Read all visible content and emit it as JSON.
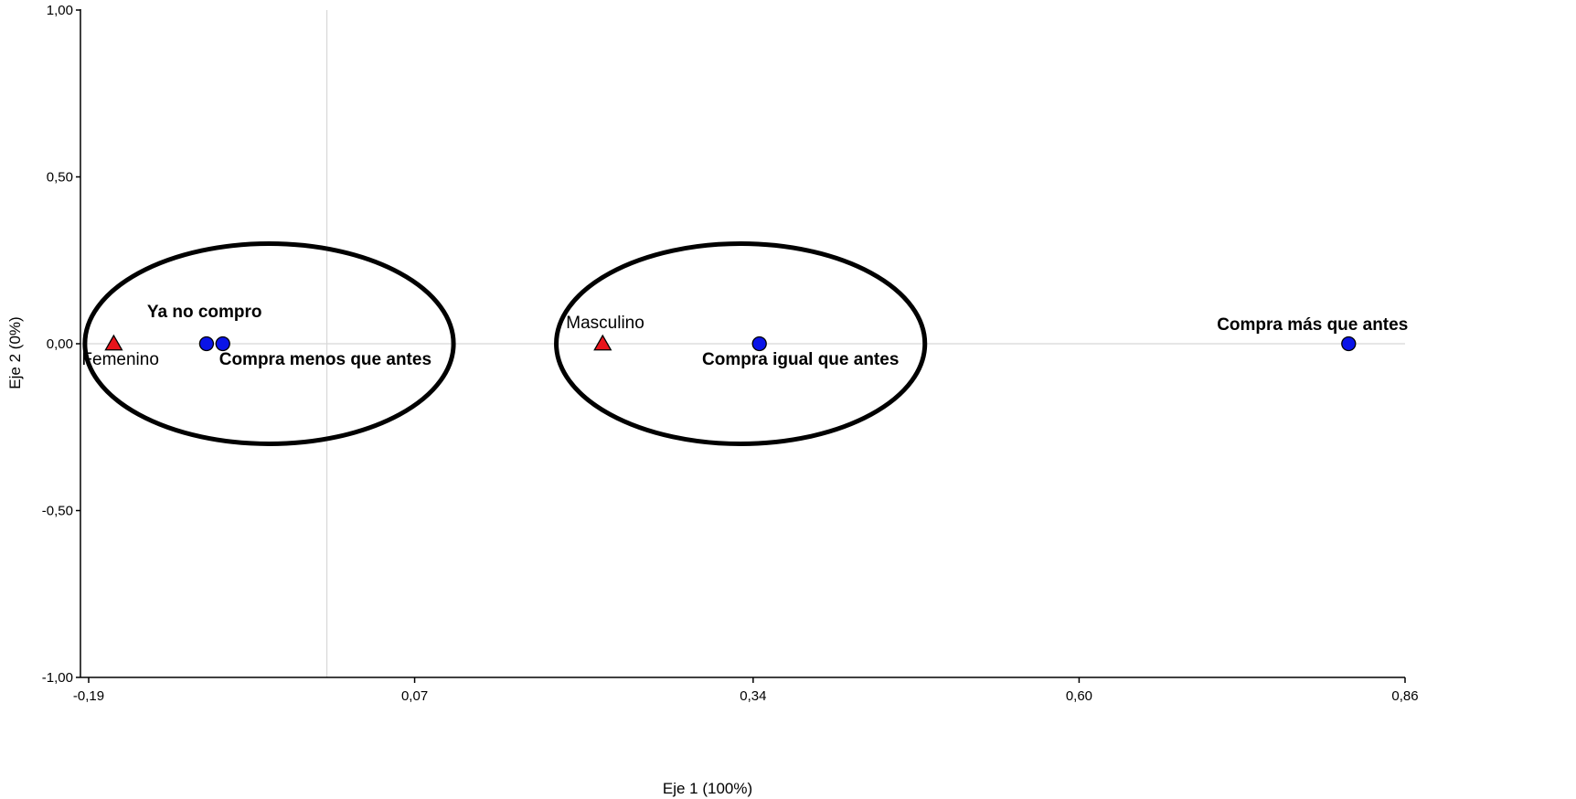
{
  "chart_data": {
    "type": "scatter",
    "title": "",
    "xlabel": "Eje 1 (100%)",
    "ylabel": "Eje 2 (0%)",
    "xlim": [
      -0.19,
      0.86
    ],
    "ylim": [
      -1.0,
      1.0
    ],
    "xticks": [
      -0.19,
      0.07,
      0.34,
      0.6,
      0.86
    ],
    "xtick_labels": [
      "-0,19",
      "0,07",
      "0,34",
      "0,60",
      "0,86"
    ],
    "yticks": [
      -1.0,
      -0.5,
      0.0,
      0.5,
      1.0
    ],
    "ytick_labels": [
      "-1,00",
      "-0,50",
      "0,00",
      "0,50",
      "1,00"
    ],
    "grid": false,
    "reference_lines": {
      "x": 0.0,
      "y": 0.0
    },
    "series": [
      {
        "marker": "triangle",
        "color": "#e8141b",
        "points": [
          {
            "label": "Femenino",
            "x": -0.17,
            "y": 0.0
          },
          {
            "label": "Masculino",
            "x": 0.22,
            "y": 0.0
          }
        ]
      },
      {
        "marker": "circle",
        "color": "#0a14e8",
        "points": [
          {
            "label": "Ya no compro",
            "x": -0.096,
            "y": 0.0
          },
          {
            "label": "Compra menos que antes",
            "x": -0.083,
            "y": 0.0
          },
          {
            "label": "Compra igual que antes",
            "x": 0.345,
            "y": 0.0
          },
          {
            "label": "Compra más que antes",
            "x": 0.815,
            "y": 0.0
          }
        ]
      }
    ],
    "annotations": [
      {
        "shape": "ellipse",
        "cx": -0.046,
        "cy": 0.0,
        "rx": 0.147,
        "ry": 0.3
      },
      {
        "shape": "ellipse",
        "cx": 0.33,
        "cy": 0.0,
        "rx": 0.147,
        "ry": 0.3
      }
    ]
  }
}
